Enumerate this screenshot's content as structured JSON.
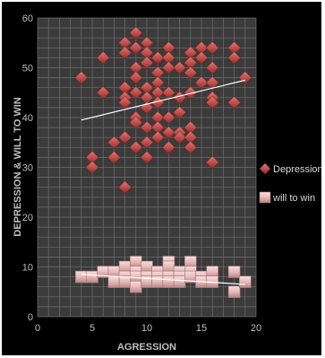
{
  "chart_data": {
    "type": "scatter",
    "title": "",
    "xlabel": "AGRESSION",
    "ylabel": "DEPRESSION & WILL TO WIN",
    "xlim": [
      0,
      20
    ],
    "ylim": [
      0,
      60
    ],
    "x_ticks": [
      "0",
      "5",
      "10",
      "15",
      "20"
    ],
    "y_ticks": [
      "0",
      "10",
      "20",
      "30",
      "40",
      "50",
      "60"
    ],
    "grid": true,
    "legend_position": "right",
    "series": [
      {
        "name": "Depression",
        "marker": "diamond",
        "color": "#c0504d",
        "trendline": {
          "x": [
            4,
            19
          ],
          "y": [
            39.5,
            47.5
          ]
        },
        "points": [
          [
            4,
            48
          ],
          [
            5,
            32
          ],
          [
            5,
            30
          ],
          [
            6,
            52
          ],
          [
            6,
            45
          ],
          [
            7,
            35
          ],
          [
            7,
            32
          ],
          [
            8,
            55
          ],
          [
            8,
            53
          ],
          [
            8,
            46
          ],
          [
            8,
            44
          ],
          [
            8,
            43
          ],
          [
            8,
            36
          ],
          [
            8,
            26
          ],
          [
            9,
            57
          ],
          [
            9,
            54
          ],
          [
            9,
            50
          ],
          [
            9,
            48
          ],
          [
            9,
            45
          ],
          [
            9,
            40
          ],
          [
            9,
            39
          ],
          [
            9,
            34
          ],
          [
            10,
            55
          ],
          [
            10,
            53
          ],
          [
            10,
            51
          ],
          [
            10,
            46
          ],
          [
            10,
            44
          ],
          [
            10,
            42
          ],
          [
            10,
            38
          ],
          [
            10,
            35
          ],
          [
            10,
            32
          ],
          [
            11,
            52
          ],
          [
            11,
            49
          ],
          [
            11,
            47
          ],
          [
            11,
            45
          ],
          [
            11,
            43
          ],
          [
            11,
            40
          ],
          [
            11,
            38
          ],
          [
            11,
            36
          ],
          [
            12,
            54
          ],
          [
            12,
            52
          ],
          [
            12,
            50
          ],
          [
            12,
            45
          ],
          [
            12,
            40
          ],
          [
            12,
            37
          ],
          [
            12,
            34
          ],
          [
            13,
            50
          ],
          [
            13,
            44
          ],
          [
            13,
            41
          ],
          [
            13,
            37
          ],
          [
            13,
            36
          ],
          [
            14,
            53
          ],
          [
            14,
            51
          ],
          [
            14,
            49
          ],
          [
            14,
            45
          ],
          [
            14,
            38
          ],
          [
            14,
            36
          ],
          [
            14,
            34
          ],
          [
            15,
            54
          ],
          [
            15,
            52
          ],
          [
            15,
            47
          ],
          [
            16,
            54
          ],
          [
            16,
            50
          ],
          [
            16,
            47
          ],
          [
            16,
            44
          ],
          [
            16,
            43
          ],
          [
            16,
            31
          ],
          [
            18,
            54
          ],
          [
            18,
            52
          ],
          [
            18,
            43
          ],
          [
            19,
            48
          ]
        ]
      },
      {
        "name": "will to win",
        "marker": "square",
        "color": "#e6b9b8",
        "trendline": {
          "x": [
            4,
            19
          ],
          "y": [
            8.5,
            6.5
          ]
        },
        "points": [
          [
            4,
            8
          ],
          [
            5,
            8
          ],
          [
            6,
            9
          ],
          [
            7,
            9
          ],
          [
            7,
            7
          ],
          [
            8,
            10
          ],
          [
            8,
            8
          ],
          [
            8,
            7
          ],
          [
            9,
            11
          ],
          [
            9,
            9
          ],
          [
            9,
            8
          ],
          [
            9,
            6
          ],
          [
            10,
            10
          ],
          [
            10,
            8
          ],
          [
            10,
            7
          ],
          [
            11,
            9
          ],
          [
            11,
            8
          ],
          [
            11,
            7
          ],
          [
            12,
            11
          ],
          [
            12,
            10
          ],
          [
            12,
            8
          ],
          [
            12,
            7
          ],
          [
            13,
            9
          ],
          [
            13,
            8
          ],
          [
            13,
            7
          ],
          [
            14,
            11
          ],
          [
            14,
            9
          ],
          [
            14,
            8
          ],
          [
            15,
            8
          ],
          [
            15,
            7
          ],
          [
            16,
            9
          ],
          [
            16,
            7
          ],
          [
            18,
            9
          ],
          [
            18,
            5
          ],
          [
            19,
            7
          ]
        ]
      }
    ]
  }
}
